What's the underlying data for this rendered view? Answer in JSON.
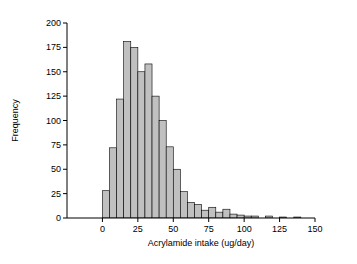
{
  "chart_data": {
    "type": "histogram",
    "x_label": "Acrylamide intake (ug/day)",
    "y_label": "Frequency",
    "bins": [
      0,
      5,
      10,
      15,
      20,
      25,
      30,
      35,
      40,
      45,
      50,
      55,
      60,
      65,
      70,
      75,
      80,
      85,
      90,
      95,
      100,
      105,
      110,
      115,
      120,
      125,
      130,
      135,
      140
    ],
    "values": [
      28,
      72,
      122,
      181,
      175,
      150,
      158,
      125,
      100,
      73,
      50,
      27,
      16,
      14,
      8,
      11,
      6,
      9,
      4,
      3,
      2,
      2,
      0,
      2,
      0,
      1,
      0,
      1
    ],
    "color": "#c0c0c0",
    "xlim": [
      -25,
      150
    ],
    "xticks": [
      0,
      25,
      50,
      75,
      100,
      125,
      150
    ],
    "ylim": [
      0,
      200
    ],
    "yticks": [
      0,
      25,
      50,
      75,
      100,
      125,
      150,
      175,
      200
    ],
    "grid": false
  }
}
